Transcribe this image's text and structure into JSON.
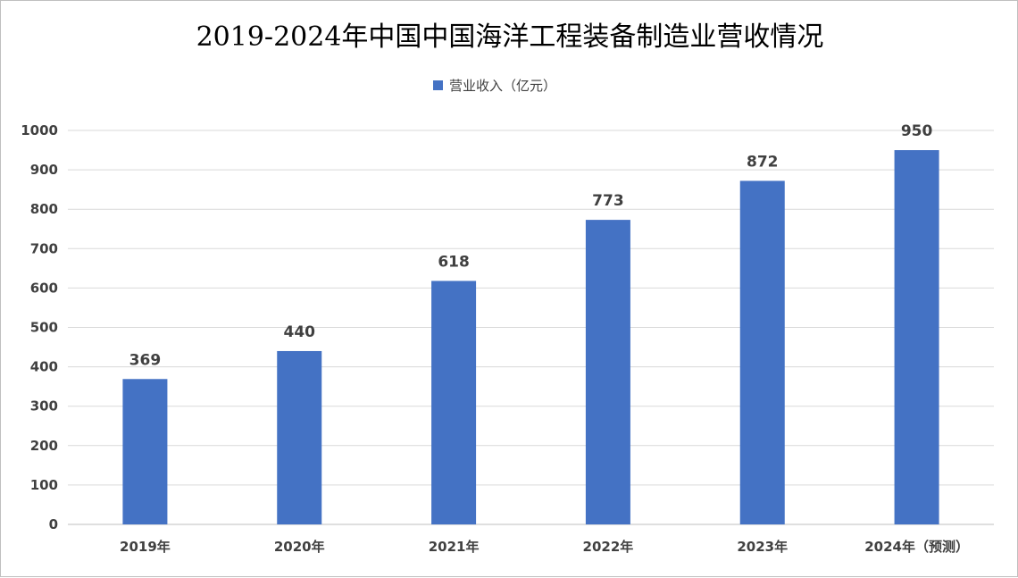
{
  "chart_data": {
    "type": "bar",
    "title": "2019-2024年中国中国海洋工程装备制造业营收情况",
    "categories": [
      "2019年",
      "2020年",
      "2021年",
      "2022年",
      "2023年",
      "2024年（预测）"
    ],
    "series": [
      {
        "name": "营业收入（亿元）",
        "values": [
          369,
          440,
          618,
          773,
          872,
          950
        ],
        "color": "#4472c4"
      }
    ],
    "ylim": [
      0,
      1000
    ],
    "yticks": [
      0,
      100,
      200,
      300,
      400,
      500,
      600,
      700,
      800,
      900,
      1000
    ],
    "grid": true,
    "legend_position": "top-center",
    "data_labels": true
  }
}
